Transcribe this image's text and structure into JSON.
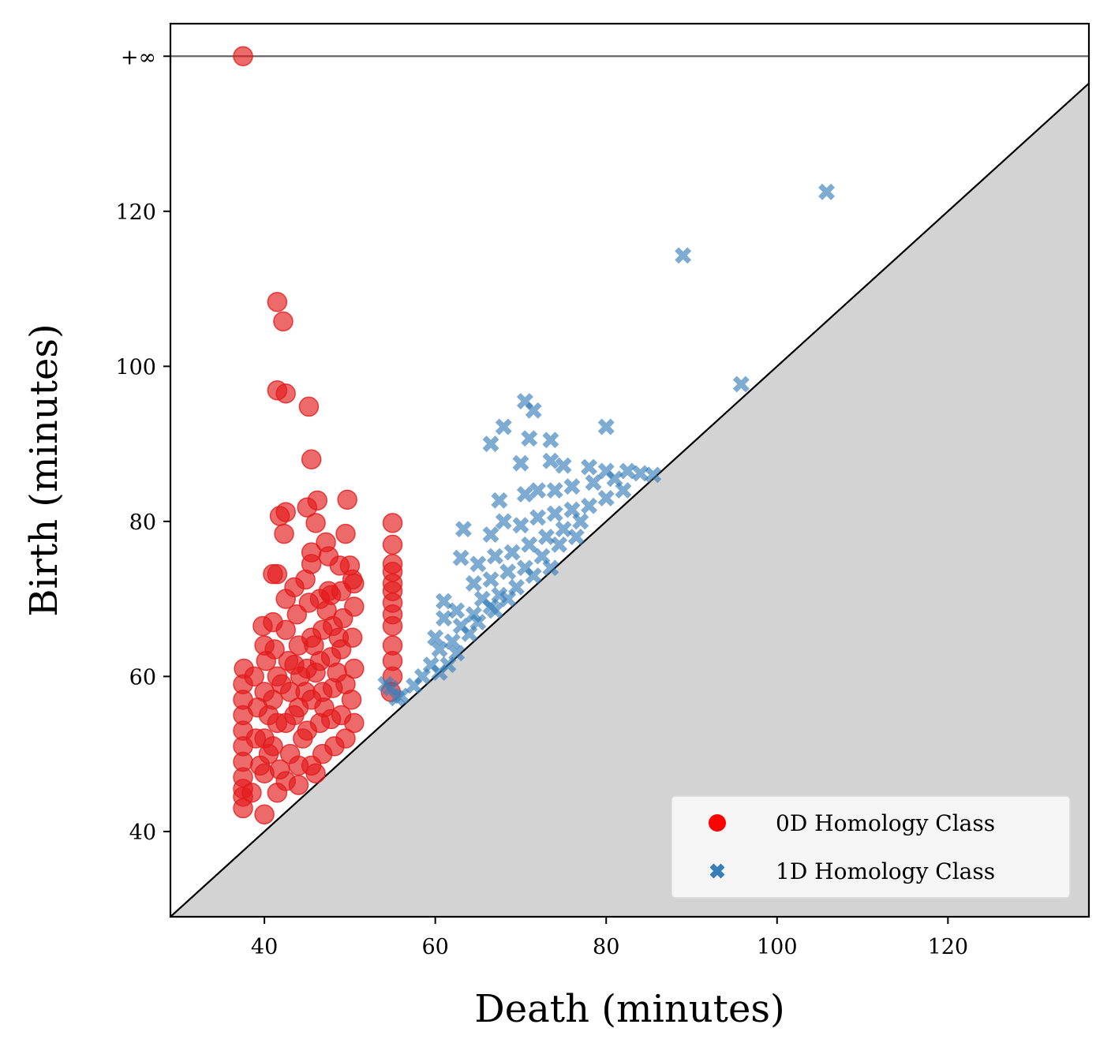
{
  "chart_data": {
    "type": "scatter",
    "title": "",
    "xlabel": "Death (minutes)",
    "ylabel": "Birth (minutes)",
    "xlim": [
      29,
      136.5
    ],
    "ylim": [
      29,
      144.2
    ],
    "x_ticks": [
      40,
      60,
      80,
      100,
      120
    ],
    "y_ticks": [
      40,
      60,
      80,
      100,
      120
    ],
    "infinity_label": "+∞",
    "infinity_level": 140,
    "grid": false,
    "diagonal": true,
    "legend_placement": "bottom-right",
    "legend": [
      {
        "label": "0D Homology Class",
        "marker": "circle",
        "color": "#e41a1c"
      },
      {
        "label": "1D Homology Class",
        "marker": "x",
        "color": "#377eb8"
      }
    ],
    "colors": {
      "series_0d": "#e41a1c",
      "series_1d": "#377eb8",
      "infinity_line": "#666666",
      "below_diagonal_fill": "#d3d3d3",
      "legend_bg": "#f5f5f5"
    },
    "series": [
      {
        "name": "0D Homology Class",
        "marker": "circle",
        "points": [
          [
            37.5,
            140
          ],
          [
            41.5,
            108.3
          ],
          [
            42.2,
            105.8
          ],
          [
            41.5,
            96.9
          ],
          [
            42.5,
            96.5
          ],
          [
            45.2,
            94.8
          ],
          [
            45.5,
            88.0
          ],
          [
            41.8,
            80.7
          ],
          [
            42.5,
            81.2
          ],
          [
            45.0,
            81.8
          ],
          [
            46.2,
            82.7
          ],
          [
            46.0,
            79.8
          ],
          [
            49.7,
            82.8
          ],
          [
            42.3,
            78.4
          ],
          [
            49.5,
            78.4
          ],
          [
            47.2,
            77.3
          ],
          [
            45.5,
            76.0
          ],
          [
            45.5,
            74.5
          ],
          [
            47.5,
            75.5
          ],
          [
            50.0,
            74.3
          ],
          [
            48.8,
            74.3
          ],
          [
            41.0,
            73.2
          ],
          [
            41.5,
            73.2
          ],
          [
            43.5,
            71.5
          ],
          [
            44.8,
            72.5
          ],
          [
            50.5,
            72.0
          ],
          [
            47.5,
            71.0
          ],
          [
            42.5,
            70.0
          ],
          [
            37.6,
            61.0
          ],
          [
            37.5,
            59.0
          ],
          [
            37.5,
            57.0
          ],
          [
            37.5,
            55.0
          ],
          [
            37.5,
            53.0
          ],
          [
            37.5,
            51.0
          ],
          [
            37.5,
            49.0
          ],
          [
            37.5,
            47.0
          ],
          [
            37.5,
            45.5
          ],
          [
            37.5,
            44.5
          ],
          [
            37.5,
            43.0
          ],
          [
            39.8,
            66.5
          ],
          [
            40.0,
            64.0
          ],
          [
            40.2,
            62.0
          ],
          [
            40.0,
            58.0
          ],
          [
            40.5,
            55.0
          ],
          [
            40.0,
            52.0
          ],
          [
            40.5,
            50.0
          ],
          [
            40.0,
            47.5
          ],
          [
            40.0,
            42.2
          ],
          [
            41.0,
            67.0
          ],
          [
            41.2,
            63.5
          ],
          [
            41.5,
            60.0
          ],
          [
            41.0,
            57.0
          ],
          [
            41.5,
            54.0
          ],
          [
            41.0,
            51.0
          ],
          [
            41.8,
            48.0
          ],
          [
            41.5,
            45.0
          ],
          [
            42.5,
            66.0
          ],
          [
            42.8,
            62.0
          ],
          [
            43.0,
            58.0
          ],
          [
            42.5,
            54.0
          ],
          [
            43.0,
            50.0
          ],
          [
            42.5,
            46.5
          ],
          [
            43.8,
            68.0
          ],
          [
            44.0,
            64.0
          ],
          [
            44.2,
            60.0
          ],
          [
            44.0,
            56.0
          ],
          [
            44.5,
            52.0
          ],
          [
            44.0,
            48.5
          ],
          [
            45.2,
            69.5
          ],
          [
            45.5,
            65.0
          ],
          [
            45.0,
            61.0
          ],
          [
            45.5,
            57.0
          ],
          [
            45.0,
            53.0
          ],
          [
            45.5,
            48.5
          ],
          [
            46.5,
            70.0
          ],
          [
            46.8,
            66.0
          ],
          [
            46.5,
            62.0
          ],
          [
            46.8,
            58.0
          ],
          [
            46.5,
            54.0
          ],
          [
            46.8,
            50.0
          ],
          [
            47.8,
            70.5
          ],
          [
            48.0,
            66.5
          ],
          [
            47.8,
            62.5
          ],
          [
            48.0,
            58.5
          ],
          [
            47.8,
            54.5
          ],
          [
            48.2,
            51.0
          ],
          [
            49.0,
            71.0
          ],
          [
            49.2,
            67.5
          ],
          [
            49.0,
            63.5
          ],
          [
            49.5,
            59.0
          ],
          [
            49.0,
            55.0
          ],
          [
            49.5,
            52.0
          ],
          [
            50.3,
            72.5
          ],
          [
            50.5,
            69.0
          ],
          [
            50.3,
            65.0
          ],
          [
            50.5,
            61.0
          ],
          [
            50.2,
            57.0
          ],
          [
            50.5,
            54.0
          ],
          [
            38.8,
            60.0
          ],
          [
            39.2,
            56.0
          ],
          [
            39.0,
            52.0
          ],
          [
            43.5,
            55.0
          ],
          [
            47.0,
            56.0
          ],
          [
            44.8,
            58.0
          ],
          [
            46.0,
            60.5
          ],
          [
            48.5,
            60.5
          ],
          [
            42.0,
            59.0
          ],
          [
            43.5,
            61.5
          ],
          [
            45.8,
            64.0
          ],
          [
            48.7,
            65.0
          ],
          [
            47.3,
            68.5
          ],
          [
            39.5,
            48.5
          ],
          [
            38.5,
            45.0
          ],
          [
            44.0,
            46.0
          ],
          [
            46.0,
            47.5
          ],
          [
            55.0,
            79.8
          ],
          [
            55.0,
            77.0
          ],
          [
            55.0,
            74.5
          ],
          [
            55.0,
            73.5
          ],
          [
            55.0,
            72.0
          ],
          [
            55.0,
            71.0
          ],
          [
            55.0,
            69.5
          ],
          [
            55.0,
            68.0
          ],
          [
            55.0,
            66.5
          ],
          [
            55.0,
            64.0
          ],
          [
            55.0,
            62.0
          ],
          [
            55.0,
            60.0
          ],
          [
            54.8,
            58.0
          ]
        ]
      },
      {
        "name": "1D Homology Class",
        "marker": "x",
        "points": [
          [
            105.8,
            122.5
          ],
          [
            89.0,
            114.3
          ],
          [
            95.8,
            97.7
          ],
          [
            70.5,
            95.5
          ],
          [
            71.5,
            94.3
          ],
          [
            80.0,
            92.2
          ],
          [
            68.0,
            92.2
          ],
          [
            66.5,
            90.0
          ],
          [
            71.0,
            90.7
          ],
          [
            73.5,
            90.5
          ],
          [
            70.0,
            87.5
          ],
          [
            73.5,
            87.8
          ],
          [
            75.0,
            87.2
          ],
          [
            78.0,
            87.0
          ],
          [
            80.0,
            86.5
          ],
          [
            82.5,
            86.5
          ],
          [
            84.0,
            86.2
          ],
          [
            85.5,
            86.0
          ],
          [
            67.5,
            82.7
          ],
          [
            70.5,
            83.5
          ],
          [
            72.0,
            84.0
          ],
          [
            74.0,
            84.0
          ],
          [
            76.0,
            84.5
          ],
          [
            78.5,
            85.0
          ],
          [
            81.0,
            85.5
          ],
          [
            63.3,
            79.0
          ],
          [
            66.5,
            78.3
          ],
          [
            68.0,
            80.0
          ],
          [
            70.0,
            79.5
          ],
          [
            72.0,
            80.5
          ],
          [
            74.0,
            81.0
          ],
          [
            76.0,
            81.5
          ],
          [
            78.0,
            82.0
          ],
          [
            80.0,
            83.0
          ],
          [
            82.0,
            84.0
          ],
          [
            63.0,
            75.3
          ],
          [
            65.0,
            74.5
          ],
          [
            67.0,
            75.5
          ],
          [
            69.0,
            76.0
          ],
          [
            71.0,
            77.0
          ],
          [
            73.0,
            78.0
          ],
          [
            75.0,
            79.0
          ],
          [
            77.0,
            80.0
          ],
          [
            64.5,
            72.0
          ],
          [
            66.5,
            72.5
          ],
          [
            68.5,
            73.5
          ],
          [
            70.5,
            74.0
          ],
          [
            72.5,
            75.5
          ],
          [
            74.5,
            77.0
          ],
          [
            76.5,
            78.0
          ],
          [
            65.5,
            70.0
          ],
          [
            67.5,
            70.5
          ],
          [
            69.5,
            71.5
          ],
          [
            71.5,
            73.0
          ],
          [
            73.5,
            74.0
          ],
          [
            61.0,
            69.7
          ],
          [
            62.5,
            68.5
          ],
          [
            64.5,
            68.0
          ],
          [
            66.5,
            69.0
          ],
          [
            68.5,
            70.0
          ],
          [
            61.0,
            67.5
          ],
          [
            63.0,
            66.5
          ],
          [
            65.0,
            67.0
          ],
          [
            67.0,
            68.5
          ],
          [
            60.0,
            65.0
          ],
          [
            62.0,
            64.5
          ],
          [
            64.0,
            65.5
          ],
          [
            60.5,
            63.5
          ],
          [
            62.5,
            63.0
          ],
          [
            59.5,
            61.5
          ],
          [
            61.5,
            61.5
          ],
          [
            58.5,
            60.0
          ],
          [
            60.5,
            60.5
          ],
          [
            57.5,
            58.8
          ],
          [
            54.2,
            59.0
          ],
          [
            54.8,
            58.5
          ],
          [
            55.5,
            57.2
          ],
          [
            56.0,
            57.5
          ]
        ]
      }
    ]
  }
}
